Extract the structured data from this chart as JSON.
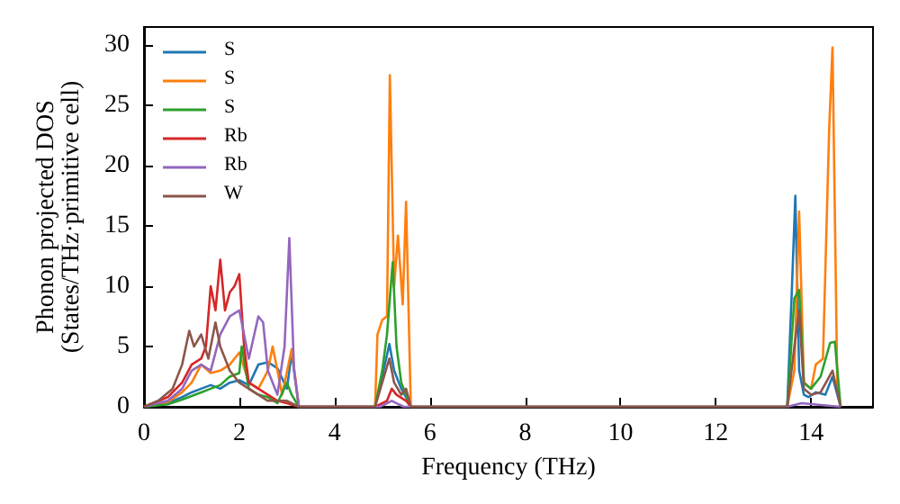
{
  "chart_data": {
    "type": "line",
    "xlabel": "Frequency (THz)",
    "ylabel": "Phonon projected DOS\n(States/THz·primitive cell)",
    "xlim": [
      0,
      15.3
    ],
    "ylim": [
      0,
      31.5
    ],
    "xticks": [
      0,
      2,
      4,
      6,
      8,
      10,
      12,
      14
    ],
    "yticks": [
      0,
      5,
      10,
      15,
      20,
      25,
      30
    ],
    "grid": false,
    "legend": "top left",
    "marker": "none",
    "line_style": "solid",
    "series": [
      {
        "name": "S",
        "color": "#1f77b4",
        "x": [
          0,
          0.5,
          0.8,
          1.0,
          1.2,
          1.4,
          1.6,
          1.8,
          2.0,
          2.2,
          2.4,
          2.6,
          2.8,
          3.0,
          3.1,
          3.25,
          4.85,
          5.0,
          5.15,
          5.25,
          5.4,
          5.5,
          5.6,
          13.5,
          13.6,
          13.67,
          13.75,
          13.85,
          13.95,
          14.1,
          14.3,
          14.45,
          14.62
        ],
        "values": [
          0,
          0.3,
          0.8,
          1.2,
          1.5,
          1.8,
          1.5,
          2.0,
          2.2,
          1.8,
          3.5,
          3.7,
          3.2,
          1.5,
          4.5,
          0,
          0,
          2.5,
          5.2,
          3.0,
          1.5,
          0.8,
          0,
          0,
          10,
          17.5,
          3,
          1,
          0.8,
          1.2,
          1.0,
          2.5,
          0
        ]
      },
      {
        "name": "S",
        "color": "#ff7f0e",
        "x": [
          0,
          0.5,
          0.8,
          1.0,
          1.2,
          1.4,
          1.6,
          1.8,
          2.0,
          2.2,
          2.4,
          2.6,
          2.7,
          2.9,
          3.1,
          3.25,
          4.85,
          4.9,
          5.0,
          5.1,
          5.16,
          5.25,
          5.33,
          5.43,
          5.5,
          5.6,
          13.5,
          13.65,
          13.75,
          13.85,
          14.0,
          14.1,
          14.25,
          14.38,
          14.45,
          14.55,
          14.62
        ],
        "values": [
          0,
          0.4,
          1.2,
          2.0,
          3.5,
          2.8,
          3.0,
          3.5,
          4.5,
          2.0,
          1.5,
          3.0,
          5.0,
          1.0,
          4.8,
          0,
          0,
          6.0,
          7.2,
          7.5,
          27.5,
          10,
          14.2,
          8.5,
          17,
          0,
          0,
          3,
          16.2,
          2,
          1.5,
          3.5,
          4,
          23,
          29.8,
          2,
          0
        ]
      },
      {
        "name": "S",
        "color": "#2ca02c",
        "x": [
          0,
          0.5,
          0.8,
          1.0,
          1.2,
          1.4,
          1.6,
          1.8,
          2.0,
          2.05,
          2.2,
          2.4,
          2.6,
          2.8,
          3.0,
          3.1,
          3.25,
          4.85,
          5.0,
          5.1,
          5.22,
          5.3,
          5.4,
          5.5,
          5.6,
          13.5,
          13.65,
          13.75,
          13.85,
          14.0,
          14.2,
          14.4,
          14.5,
          14.62
        ],
        "values": [
          0,
          0.2,
          0.6,
          0.9,
          1.2,
          1.5,
          1.8,
          2.5,
          2.8,
          5.0,
          1.5,
          1.0,
          0.8,
          0.3,
          2.0,
          1.0,
          0,
          0,
          3,
          6,
          12,
          5,
          2,
          1,
          0,
          0,
          9,
          9.7,
          2,
          1.5,
          2.5,
          5.3,
          5.4,
          0
        ]
      },
      {
        "name": "Rb",
        "color": "#d62728",
        "x": [
          0,
          0.5,
          0.8,
          1.0,
          1.2,
          1.3,
          1.4,
          1.5,
          1.6,
          1.7,
          1.8,
          1.9,
          2.0,
          2.1,
          2.2,
          2.4,
          2.6,
          2.8,
          3.0,
          3.25,
          4.85,
          5.1,
          5.2,
          5.3,
          5.5,
          5.6
        ],
        "values": [
          0,
          0.8,
          2.0,
          3.5,
          4.0,
          5,
          10,
          8,
          12.2,
          8,
          9.5,
          10,
          11,
          5,
          2,
          1.5,
          1.0,
          0.5,
          0.3,
          0,
          0,
          0.5,
          1.5,
          1,
          0.5,
          0
        ]
      },
      {
        "name": "Rb",
        "color": "#9467bd",
        "x": [
          0,
          0.5,
          0.8,
          1.0,
          1.2,
          1.4,
          1.6,
          1.8,
          2.0,
          2.2,
          2.4,
          2.5,
          2.6,
          2.8,
          2.95,
          3.05,
          3.15,
          3.25,
          4.95,
          5.2,
          5.45,
          13.5,
          13.8,
          14.62
        ],
        "values": [
          0,
          0.5,
          1.5,
          3.0,
          3.5,
          3.0,
          6,
          7.5,
          8,
          4,
          7.5,
          7,
          3,
          1,
          5,
          14,
          3,
          0,
          0,
          0.5,
          0,
          0,
          0.3,
          0
        ]
      },
      {
        "name": "W",
        "color": "#8c564b",
        "x": [
          0,
          0.3,
          0.6,
          0.8,
          0.95,
          1.05,
          1.2,
          1.35,
          1.5,
          1.6,
          1.8,
          2.0,
          2.2,
          2.4,
          2.6,
          2.8,
          3.0,
          3.25,
          4.85,
          5.0,
          5.15,
          5.25,
          5.4,
          5.5,
          5.6,
          13.5,
          13.65,
          13.75,
          13.85,
          14.0,
          14.2,
          14.45,
          14.62
        ],
        "values": [
          0,
          0.5,
          1.5,
          3.5,
          6.3,
          5,
          6,
          4,
          7,
          5,
          3,
          2,
          1.5,
          1.0,
          0.5,
          0.5,
          0.5,
          0,
          0,
          2,
          4,
          2,
          1,
          1.5,
          0,
          0,
          5,
          8,
          1.5,
          1,
          1.2,
          3,
          0
        ]
      }
    ]
  }
}
